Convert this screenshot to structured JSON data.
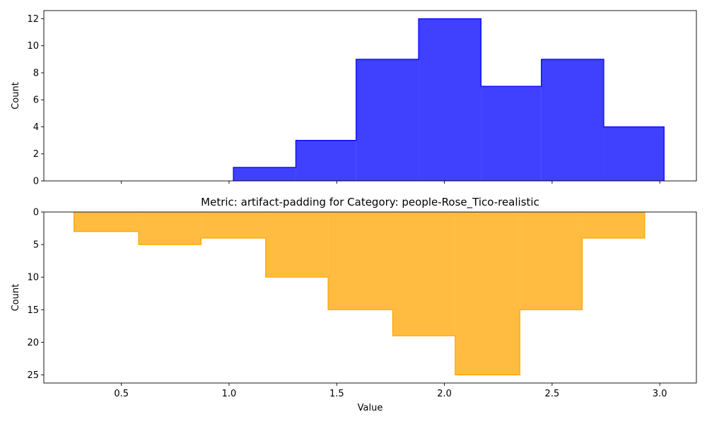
{
  "chart_data": [
    {
      "type": "histogram",
      "title": "",
      "xlabel": "",
      "ylabel": "Count",
      "xlim": [
        0.14,
        3.17
      ],
      "ylim": [
        0,
        12.6
      ],
      "inverted_y": false,
      "color": "#0000ff",
      "fill_alpha": 0.75,
      "bin_edges": [
        1.02,
        1.31,
        1.59,
        1.88,
        2.17,
        2.45,
        2.74,
        3.02
      ],
      "values": [
        1,
        3,
        9,
        12,
        7,
        9,
        4
      ],
      "y_ticks": [
        0,
        2,
        4,
        6,
        8,
        10,
        12
      ],
      "x_ticks": [
        0.5,
        1.0,
        1.5,
        2.0,
        2.5,
        3.0
      ],
      "x_tick_labels_visible": false
    },
    {
      "type": "histogram",
      "title": "Metric: artifact-padding for Category: people-Rose_Tico-realistic",
      "xlabel": "Value",
      "ylabel": "Count",
      "xlim": [
        0.14,
        3.17
      ],
      "ylim": [
        0,
        26.25
      ],
      "inverted_y": true,
      "color": "#ffa500",
      "fill_alpha": 0.75,
      "bin_edges": [
        0.28,
        0.58,
        0.87,
        1.17,
        1.46,
        1.76,
        2.05,
        2.35,
        2.64,
        2.93
      ],
      "values": [
        3,
        5,
        4,
        10,
        15,
        19,
        25,
        15,
        4
      ],
      "y_ticks": [
        0,
        5,
        10,
        15,
        20,
        25
      ],
      "x_ticks": [
        0.5,
        1.0,
        1.5,
        2.0,
        2.5,
        3.0
      ],
      "x_tick_labels_visible": true
    }
  ]
}
